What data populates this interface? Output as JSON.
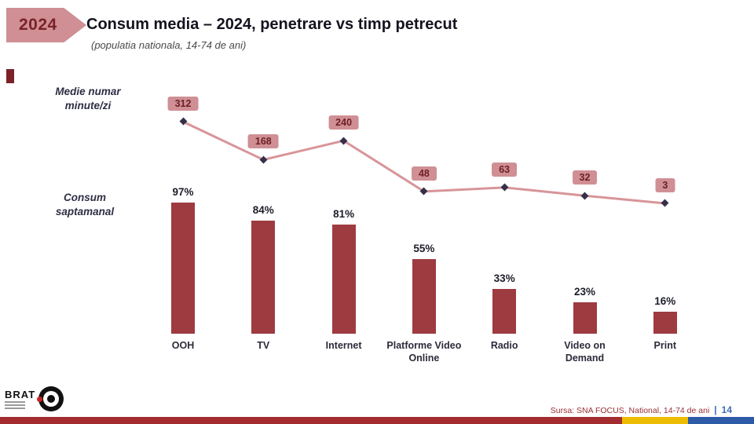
{
  "slide": {
    "year_badge": "2024",
    "title": "Consum media – 2024, penetrare vs timp petrecut",
    "subtitle": "(populatia nationala, 14-74 de ani)",
    "left_labels": {
      "line": "Medie numar minute/zi",
      "bars": "Consum saptamanal"
    },
    "footer": {
      "logo_text": "BRAT",
      "source": "Sursa: SNA FOCUS, National, 14-74 de ani",
      "page_separator": "|",
      "page_number": "14"
    },
    "colors": {
      "badge_rose": "#cf8f94",
      "line_rose": "#d89599",
      "value_badge_bg": "#cf8f94",
      "value_badge_text": "#6d1f25",
      "bar_red": "#9e3b40",
      "title_dark": "#141420",
      "label_navy": "#2e2e44",
      "source_red": "#992f33",
      "page_blue": "#3b6cb7",
      "stripe_red": "#a32c2e",
      "stripe_yellow": "#eebc00",
      "stripe_blue": "#2d5ba8"
    }
  },
  "chart_data": {
    "type": "bar",
    "title": "Consum media – 2024, penetrare vs timp petrecut",
    "subtitle": "(populatia nationala, 14-74 de ani)",
    "categories": [
      "OOH",
      "TV",
      "Internet",
      "Platforme Video Online",
      "Radio",
      "Video on Demand",
      "Print"
    ],
    "series": [
      {
        "name": "Consum saptamanal",
        "type": "bar",
        "unit": "%",
        "values": [
          97,
          84,
          81,
          55,
          33,
          23,
          16
        ]
      },
      {
        "name": "Medie numar minute/zi",
        "type": "line",
        "unit": "minute/zi",
        "values": [
          312,
          168,
          240,
          48,
          63,
          32,
          3
        ]
      }
    ],
    "xlabel": "",
    "ylabel_bars": "Consum saptamanal (penetrare %)",
    "ylabel_line": "Medie numar minute/zi",
    "ylim_bars": [
      0,
      100
    ],
    "ylim_line": [
      0,
      320
    ],
    "grid": false,
    "legend_position": "left-inline"
  }
}
